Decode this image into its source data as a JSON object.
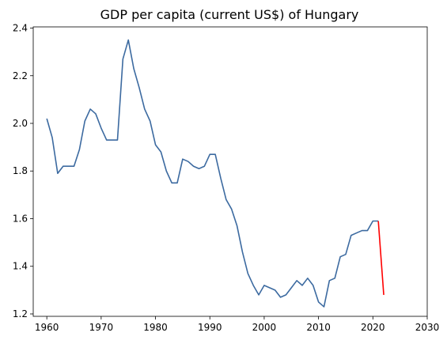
{
  "chart_data": {
    "type": "line",
    "title": "GDP per capita (current US$) of Hungary",
    "xlabel": "",
    "ylabel": "",
    "xlim": [
      1957.5,
      2030
    ],
    "ylim": [
      1.19,
      2.405
    ],
    "xticks": [
      1960,
      1970,
      1980,
      1990,
      2000,
      2010,
      2020,
      2030
    ],
    "yticks": [
      1.2,
      1.4,
      1.6,
      1.8,
      2.0,
      2.2,
      2.4
    ],
    "grid": false,
    "legend": "none",
    "series": [
      {
        "color": "#3c6aa0",
        "x": [
          1960,
          1961,
          1962,
          1963,
          1964,
          1965,
          1966,
          1967,
          1968,
          1969,
          1970,
          1971,
          1972,
          1973,
          1974,
          1975,
          1976,
          1977,
          1978,
          1979,
          1980,
          1981,
          1982,
          1983,
          1984,
          1985,
          1986,
          1987,
          1988,
          1989,
          1990,
          1991,
          1992,
          1993,
          1994,
          1995,
          1996,
          1997,
          1998,
          1999,
          2000,
          2001,
          2002,
          2003,
          2004,
          2005,
          2006,
          2007,
          2008,
          2009,
          2010,
          2011,
          2012,
          2013,
          2014,
          2015,
          2016,
          2017,
          2018,
          2019,
          2020,
          2021
        ],
        "values": [
          2.02,
          1.94,
          1.79,
          1.82,
          1.82,
          1.82,
          1.89,
          2.01,
          2.06,
          2.04,
          1.98,
          1.93,
          1.93,
          1.93,
          2.27,
          2.35,
          2.23,
          2.15,
          2.06,
          2.01,
          1.91,
          1.88,
          1.8,
          1.75,
          1.75,
          1.85,
          1.84,
          1.82,
          1.81,
          1.82,
          1.87,
          1.87,
          1.77,
          1.68,
          1.64,
          1.57,
          1.46,
          1.37,
          1.32,
          1.28,
          1.32,
          1.31,
          1.3,
          1.27,
          1.28,
          1.31,
          1.34,
          1.32,
          1.35,
          1.32,
          1.25,
          1.23,
          1.34,
          1.35,
          1.44,
          1.45,
          1.53,
          1.54,
          1.55,
          1.55,
          1.59,
          1.59
        ]
      },
      {
        "color": "#ff0000",
        "x": [
          2021,
          2022
        ],
        "values": [
          1.59,
          1.28
        ]
      }
    ]
  }
}
